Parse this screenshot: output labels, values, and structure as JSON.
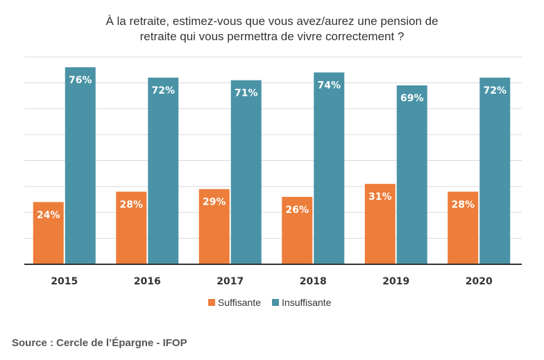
{
  "chart_data": {
    "type": "bar",
    "title_line1": "À la retraite, estimez-vous que vous avez/aurez une pension de",
    "title_line2": "retraite qui vous permettra de vivre correctement ?",
    "categories": [
      "2015",
      "2016",
      "2017",
      "2018",
      "2019",
      "2020"
    ],
    "series": [
      {
        "name": "Suffisante",
        "values": [
          24,
          28,
          29,
          26,
          31,
          28
        ],
        "labels": [
          "24%",
          "28%",
          "29%",
          "26%",
          "31%",
          "28%"
        ],
        "color": "#ED7D3A"
      },
      {
        "name": "Insuffisante",
        "values": [
          76,
          72,
          71,
          74,
          69,
          72
        ],
        "labels": [
          "76%",
          "72%",
          "71%",
          "74%",
          "69%",
          "72%"
        ],
        "color": "#4A93A6"
      }
    ],
    "ylim": [
      0,
      80
    ],
    "grid": true,
    "legend": "bottom",
    "xlabel": "",
    "ylabel": ""
  },
  "source": "Source : Cercle de l’Épargne - IFOP"
}
